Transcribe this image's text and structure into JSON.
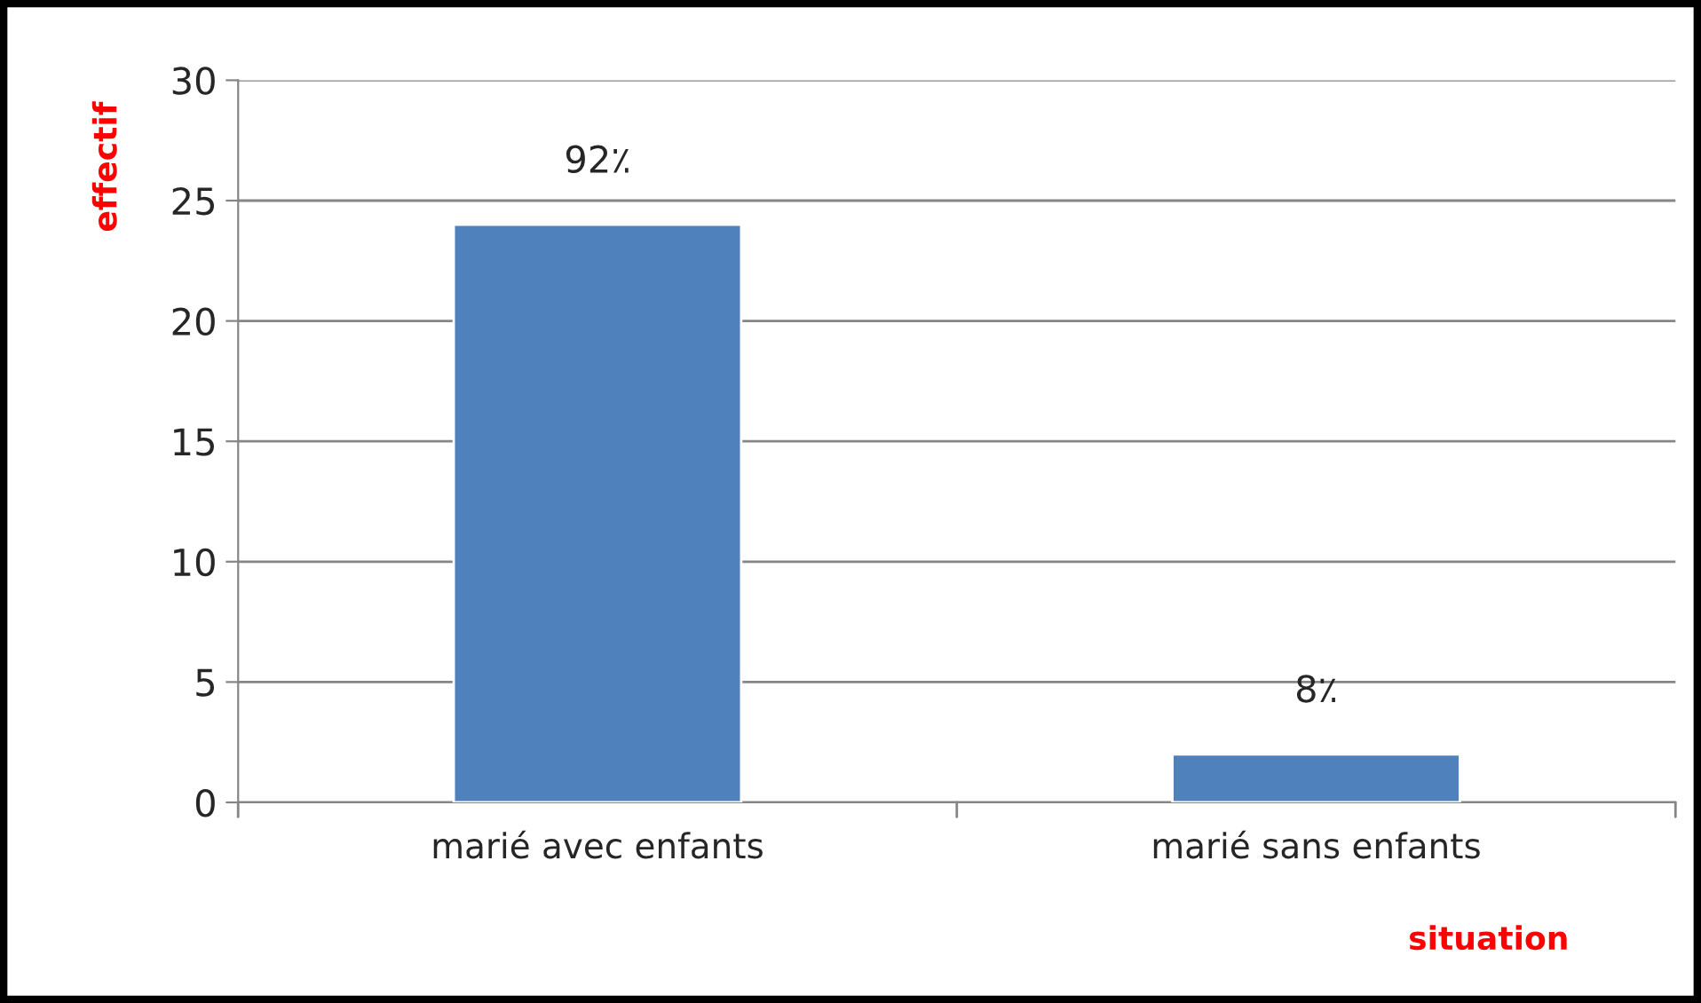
{
  "chart_data": {
    "type": "bar",
    "categories": [
      "marié avec enfants",
      "marié sans enfants"
    ],
    "values": [
      24,
      2
    ],
    "color": "#4f81bd",
    "annotations": [
      {
        "text": "92٪",
        "x": "marié avec enfants",
        "y": 24
      },
      {
        "text": "8٪",
        "x": "marié sans enfants",
        "y": 2
      }
    ],
    "ylabel": "effectif",
    "xlabel": "situation",
    "ylim": [
      0,
      30
    ],
    "yticks": [
      0,
      5,
      10,
      15,
      20,
      25,
      30
    ],
    "grid": "y"
  }
}
